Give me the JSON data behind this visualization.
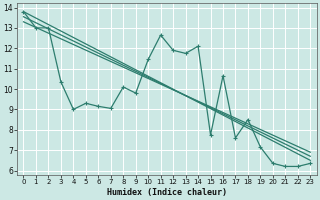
{
  "xlabel": "Humidex (Indice chaleur)",
  "bg_color": "#cce8e4",
  "grid_color": "#ffffff",
  "line_color": "#2d7d6e",
  "xlim": [
    -0.5,
    23.5
  ],
  "ylim": [
    5.8,
    14.2
  ],
  "yticks": [
    6,
    7,
    8,
    9,
    10,
    11,
    12,
    13,
    14
  ],
  "xticks": [
    0,
    1,
    2,
    3,
    4,
    5,
    6,
    7,
    8,
    9,
    10,
    11,
    12,
    13,
    14,
    15,
    16,
    17,
    18,
    19,
    20,
    21,
    22,
    23
  ],
  "data_x": [
    0,
    1,
    2,
    3,
    4,
    5,
    6,
    7,
    8,
    9,
    10,
    11,
    12,
    13,
    14,
    15,
    16,
    17,
    18,
    19,
    20,
    21,
    22,
    23
  ],
  "data_y": [
    13.8,
    13.0,
    13.0,
    10.35,
    9.0,
    9.3,
    9.15,
    9.05,
    10.1,
    9.8,
    11.45,
    12.65,
    11.9,
    11.75,
    12.1,
    7.75,
    10.65,
    7.6,
    8.5,
    7.15,
    6.35,
    6.2,
    6.2,
    6.35
  ],
  "reg_lines": [
    [
      13.8,
      6.5
    ],
    [
      13.55,
      6.7
    ],
    [
      13.3,
      6.9
    ]
  ]
}
